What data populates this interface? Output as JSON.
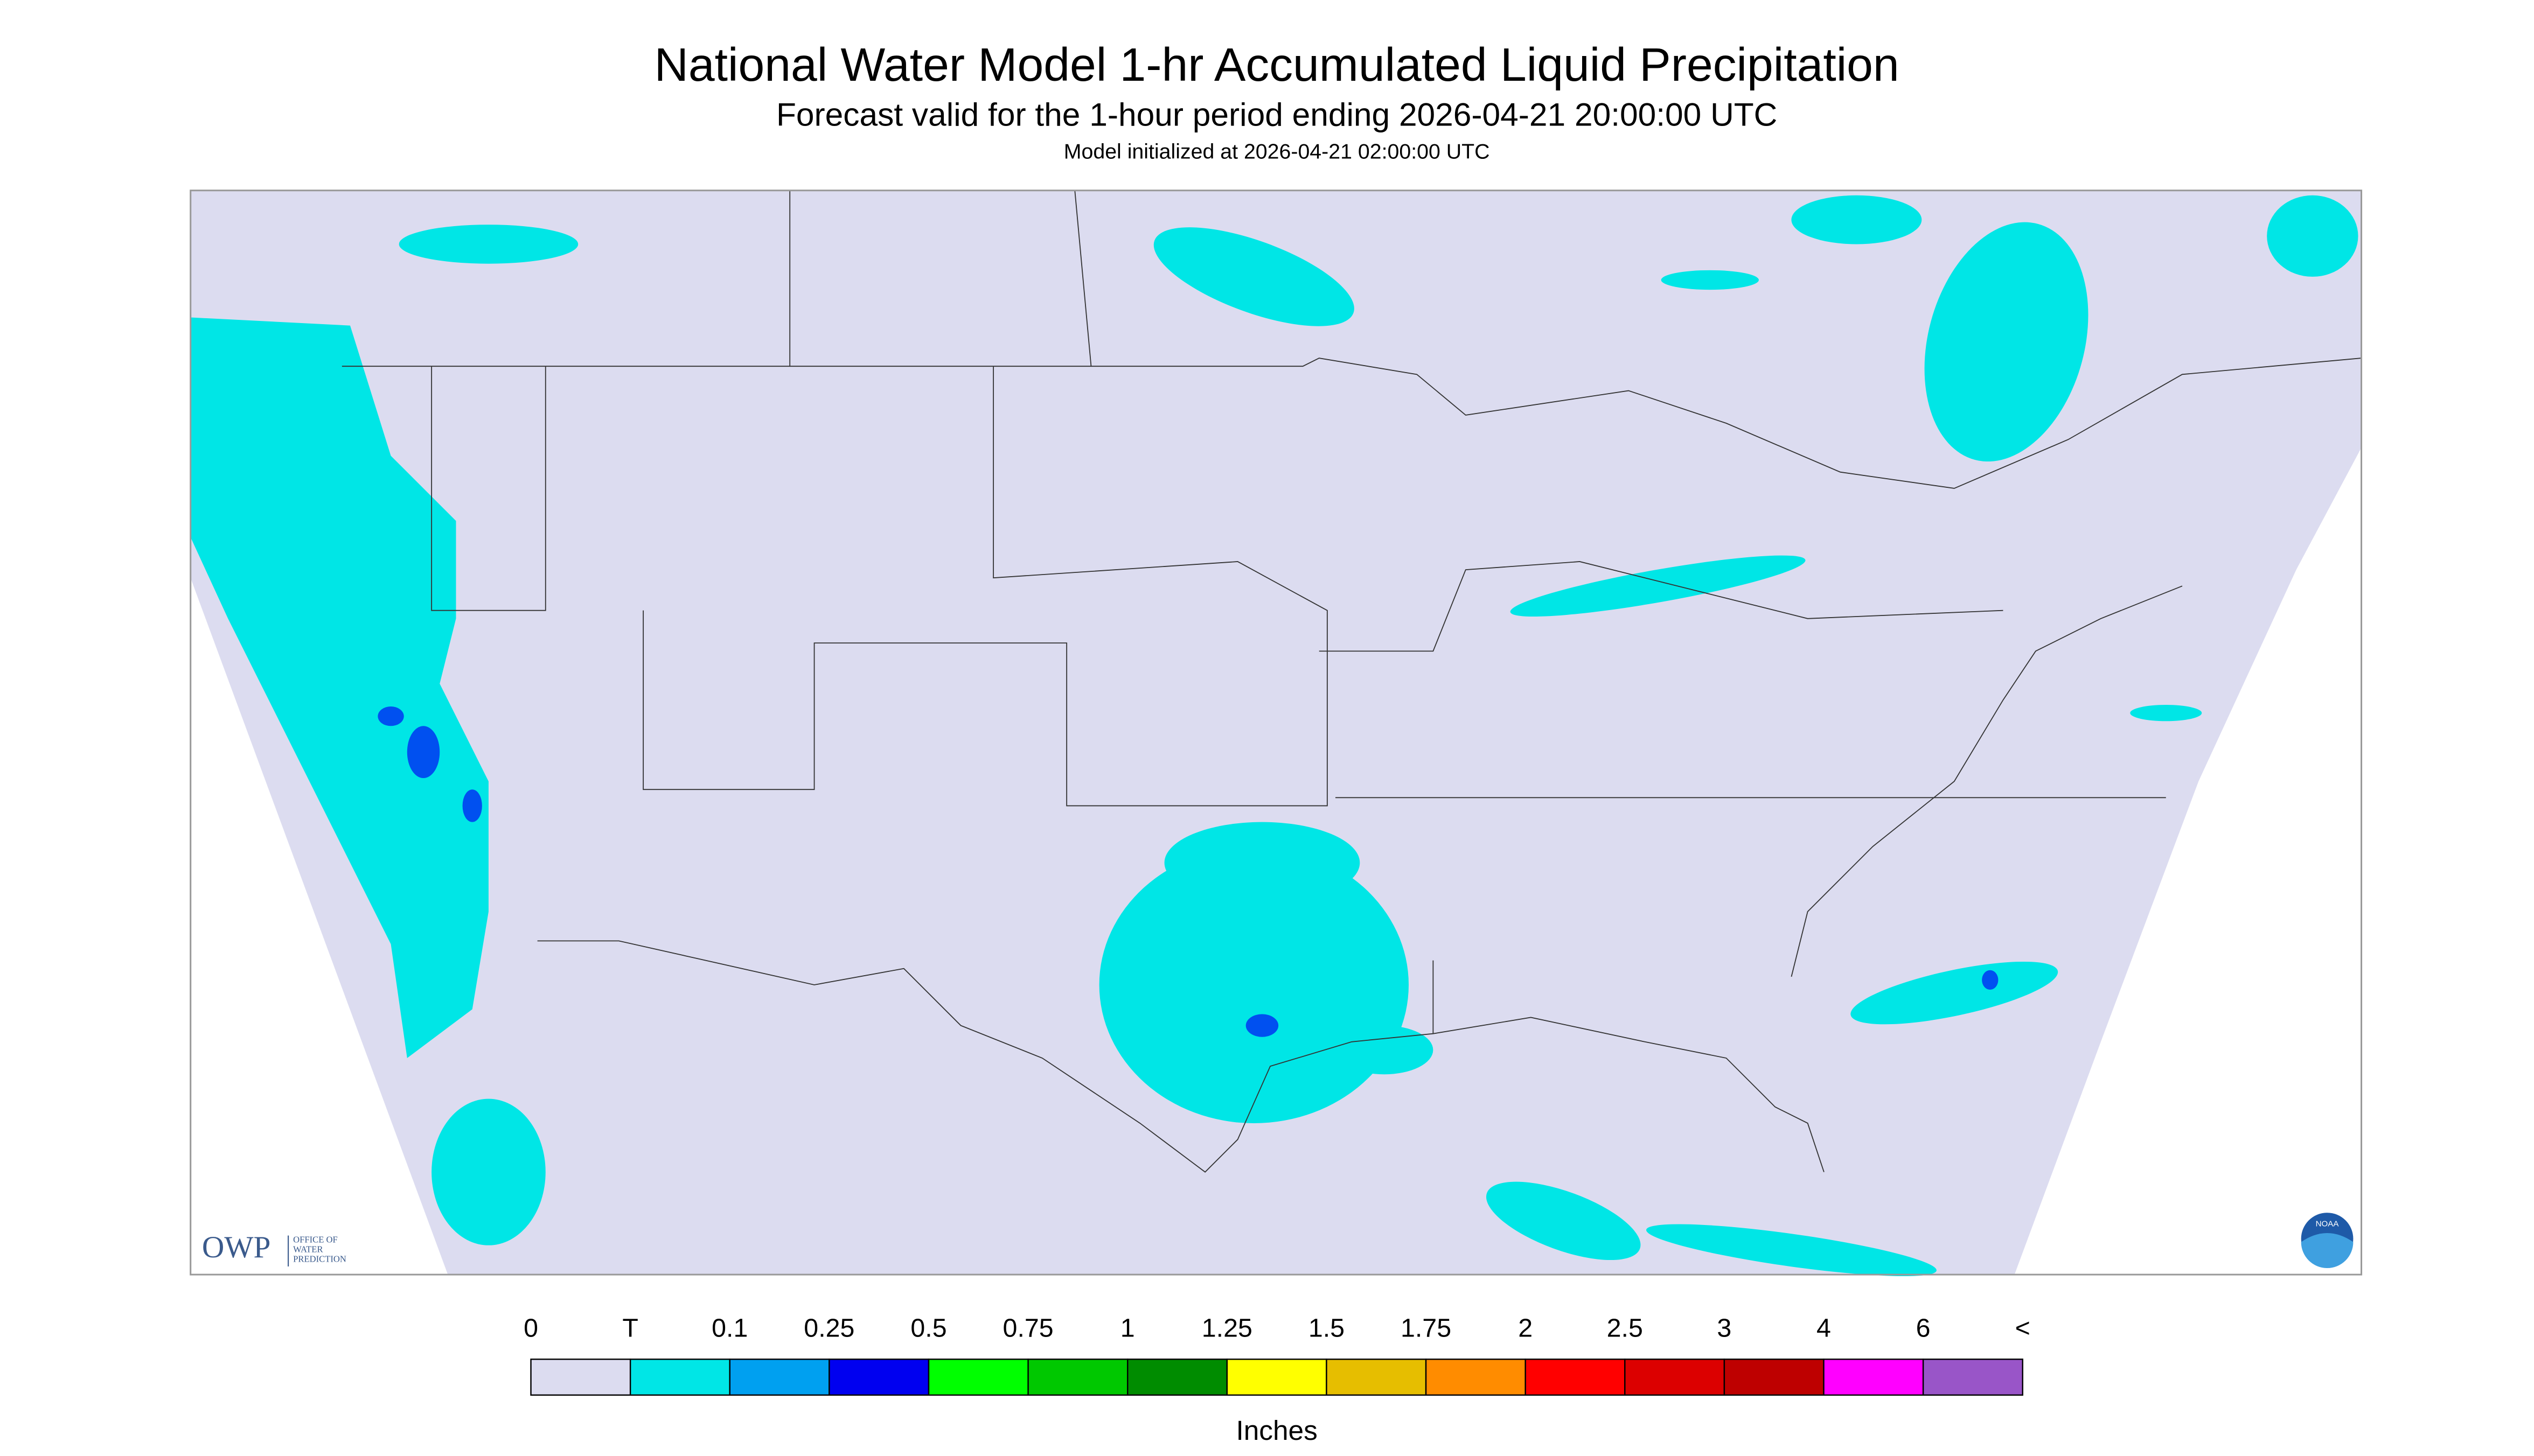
{
  "header": {
    "title": "National Water Model 1-hr Accumulated Liquid Precipitation",
    "subtitle": "Forecast valid for the 1-hour period ending 2026-04-21 20:00:00 UTC",
    "init": "Model initialized at 2026-04-21 02:00:00 UTC"
  },
  "map": {
    "background": "#dcdcf0",
    "precip_color": "#00e6e6",
    "heavy_color": "#0050f0"
  },
  "logos": {
    "owp": "OWP",
    "owp_text": [
      "OFFICE OF",
      "WATER",
      "PREDICTION"
    ],
    "noaa": "NOAA"
  },
  "legend": {
    "labels": [
      "0",
      "T",
      "0.1",
      "0.25",
      "0.5",
      "0.75",
      "1",
      "1.25",
      "1.5",
      "1.75",
      "2",
      "2.5",
      "3",
      "4",
      "6",
      "<"
    ],
    "colors": [
      "#dcdcf0",
      "#00e6e6",
      "#00a0f0",
      "#0000f0",
      "#00ff00",
      "#00c800",
      "#008c00",
      "#ffff00",
      "#e6be00",
      "#ff8c00",
      "#ff0000",
      "#dc0000",
      "#be0000",
      "#ff00ff",
      "#9955c8"
    ],
    "unit": "Inches"
  }
}
